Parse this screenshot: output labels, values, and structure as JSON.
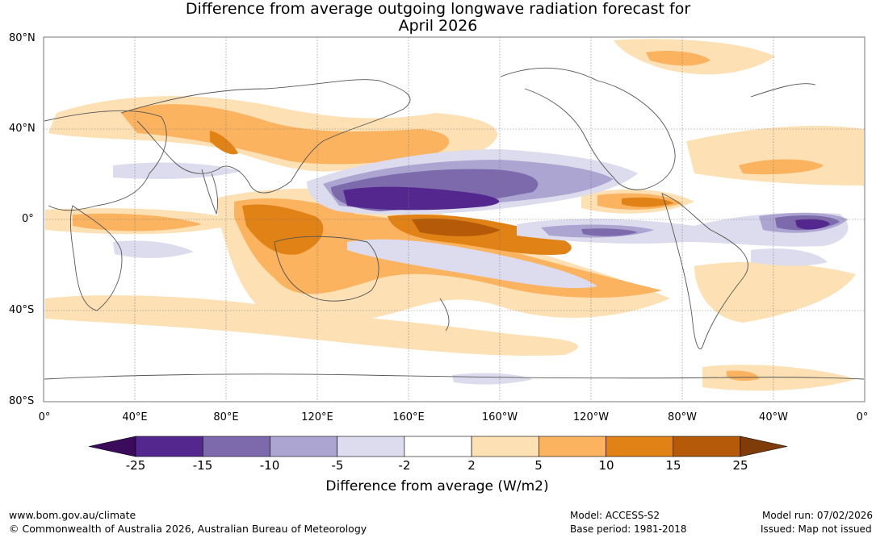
{
  "title": {
    "line1": "Difference from average outgoing longwave radiation forecast for",
    "line2": "April 2026"
  },
  "latitude_labels": [
    "80°N",
    "40°N",
    "0°",
    "40°S",
    "80°S"
  ],
  "longitude_labels": [
    "0°",
    "40°E",
    "80°E",
    "120°E",
    "160°E",
    "160°W",
    "120°W",
    "80°W",
    "40°W",
    "0°"
  ],
  "colorbar": {
    "ticks": [
      "-25",
      "-15",
      "-10",
      "-5",
      "-2",
      "2",
      "5",
      "10",
      "15",
      "25"
    ],
    "colors": [
      "#3b0b5c",
      "#54278f",
      "#7d6aad",
      "#aca5d1",
      "#dcdcee",
      "#ffffff",
      "#fde0b3",
      "#fbb360",
      "#e08215",
      "#b45a09",
      "#7f3b08"
    ],
    "label": "Difference from average (W/m2)"
  },
  "footer": {
    "url": "www.bom.gov.au/climate",
    "copyright": "© Commonwealth of Australia 2026, Australian Bureau of Meteorology",
    "model": "Model: ACCESS-S2",
    "base_period": "Base period: 1981-2018",
    "model_run": "Model run: 07/02/2026",
    "issued": "Issued: Map not issued"
  }
}
